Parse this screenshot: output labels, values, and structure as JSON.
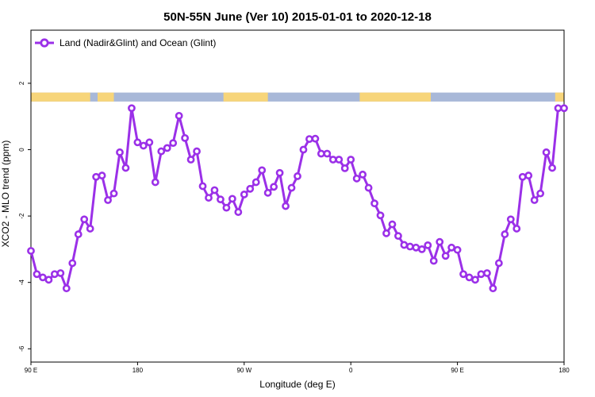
{
  "chart_data": {
    "type": "line",
    "title": "50N-55N June (Ver 10)   2015-01-01 to 2020-12-18",
    "xlabel": "Longitude (deg E)",
    "ylabel": "XCO2 - MLO trend (ppm)",
    "xlim": [
      90,
      450
    ],
    "ylim": [
      -6.4,
      3.6
    ],
    "x_ticks": [
      90,
      162,
      234,
      306,
      378,
      450
    ],
    "x_tick_labels": [
      "90 E",
      "180",
      "90 W",
      "0",
      "90 E",
      "180"
    ],
    "y_ticks": [
      -6,
      -4,
      -2,
      0,
      2
    ],
    "y_tick_labels": [
      "-6",
      "-4",
      "-2",
      "0",
      "2"
    ],
    "legend_position": "top-left",
    "colors": {
      "line": "#9b30e8",
      "land": "#f7d57a",
      "ocean": "#a8b8d8"
    },
    "land_ocean_band": {
      "y_range": [
        1.45,
        1.72
      ],
      "land_segments": [
        [
          90,
          130
        ],
        [
          135,
          146
        ],
        [
          220,
          250
        ],
        [
          312,
          360
        ],
        [
          444,
          450
        ]
      ]
    },
    "series": [
      {
        "name": "Land (Nadir&Glint) and Ocean (Glint)",
        "x": [
          90,
          94,
          98,
          102,
          106,
          110,
          114,
          118,
          122,
          126,
          130,
          134,
          138,
          142,
          146,
          150,
          154,
          158,
          162,
          166,
          170,
          174,
          178,
          182,
          186,
          190,
          194,
          198,
          202,
          206,
          210,
          214,
          218,
          222,
          226,
          230,
          234,
          238,
          242,
          246,
          250,
          254,
          258,
          262,
          266,
          270,
          274,
          278,
          282,
          286,
          290,
          294,
          298,
          302,
          306,
          310,
          314,
          318,
          322,
          326,
          330,
          334,
          338,
          342,
          346,
          350,
          354,
          358,
          362,
          366,
          370,
          374,
          378,
          382,
          386,
          390,
          394,
          398,
          402,
          406,
          410,
          414,
          418,
          422,
          426,
          430,
          434,
          438,
          442,
          446,
          450
        ],
        "values": [
          -3.05,
          -3.75,
          -3.85,
          -3.92,
          -3.75,
          -3.72,
          -4.18,
          -3.42,
          -2.55,
          -2.1,
          -2.38,
          -0.82,
          -0.78,
          -1.52,
          -1.32,
          -0.08,
          -0.55,
          1.25,
          0.22,
          0.12,
          0.22,
          -0.98,
          -0.05,
          0.05,
          0.2,
          1.02,
          0.35,
          -0.3,
          -0.05,
          -1.1,
          -1.45,
          -1.22,
          -1.5,
          -1.75,
          -1.48,
          -1.88,
          -1.35,
          -1.18,
          -0.98,
          -0.62,
          -1.3,
          -1.12,
          -0.7,
          -1.7,
          -1.15,
          -0.8,
          0.0,
          0.32,
          0.33,
          -0.12,
          -0.12,
          -0.3,
          -0.3,
          -0.56,
          -0.3,
          -0.87,
          -0.75,
          -1.15,
          -1.62,
          -1.98,
          -2.52,
          -2.25,
          -2.6,
          -2.87,
          -2.92,
          -2.95,
          -3.0,
          -2.88,
          -3.35,
          -2.78,
          -3.2,
          -2.95,
          -3.02,
          -3.75,
          -3.85,
          -3.92,
          -3.75,
          -3.72,
          -4.18,
          -3.42,
          -2.55,
          -2.1,
          -2.38,
          -0.82,
          -0.78,
          -1.52,
          -1.32,
          -0.08,
          -0.55,
          1.25,
          1.25
        ]
      }
    ]
  }
}
